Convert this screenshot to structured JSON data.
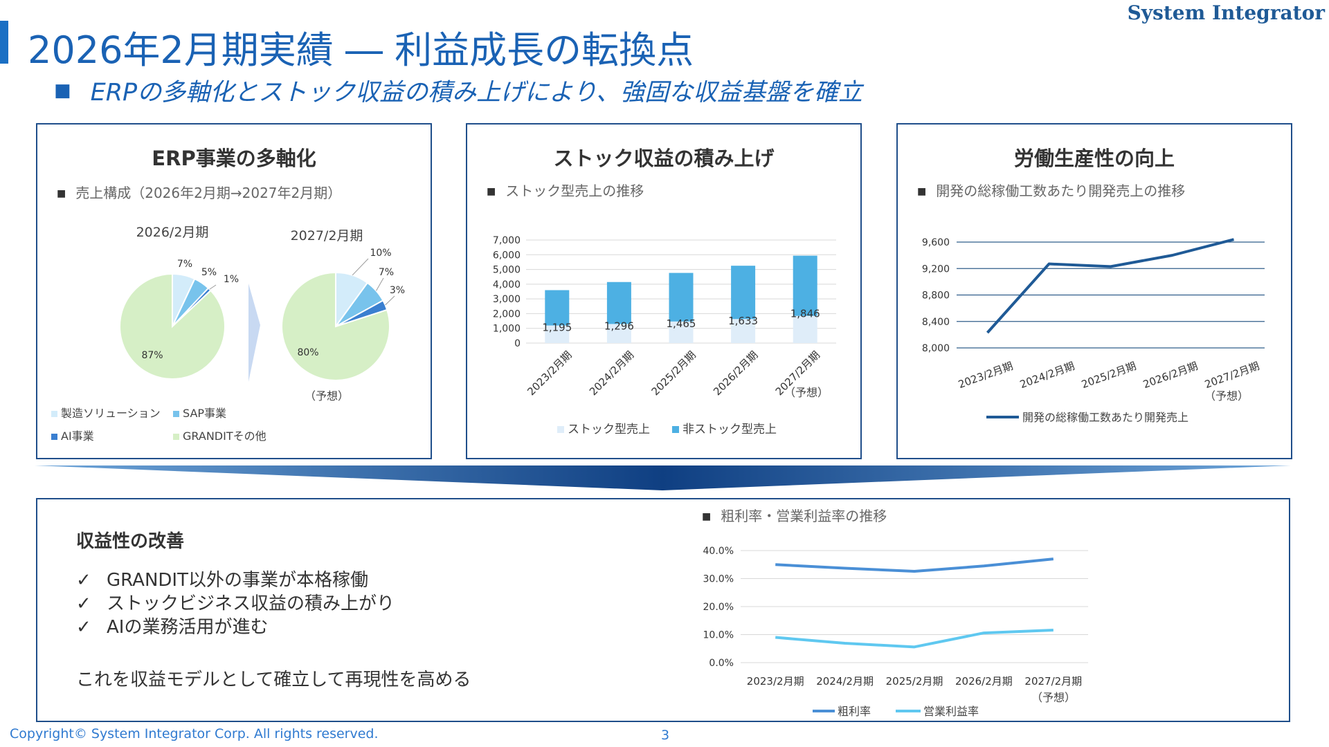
{
  "header": {
    "brand": "System Integrator",
    "title": "2026年2月期実績 ― 利益成長の転換点",
    "subtitle": "ERPの多軸化とストック収益の積み上げにより、強固な収益基盤を確立",
    "subtitle_marker": "■"
  },
  "panels": {
    "erp": {
      "title": "ERP事業の多軸化",
      "subtitle": "売上構成（2026年2月期→2027年2月期）",
      "marker": "■",
      "pie_left_label": "2026/2月期",
      "pie_right_label": "2027/2月期",
      "pie_right_note": "（予想）"
    },
    "stock": {
      "title": "ストック収益の積み上げ",
      "subtitle": "ストック型売上の推移",
      "marker": "■",
      "note": "（予想）"
    },
    "labor": {
      "title": "労働生産性の向上",
      "subtitle": "開発の総稼働工数あたり開発売上の推移",
      "marker": "■",
      "note": "（予想）"
    },
    "profit": {
      "section_title": "収益性の改善",
      "check_mark": "✓",
      "checks": [
        "GRANDIT以外の事業が本格稼働",
        "ストックビジネス収益の積み上がり",
        "AIの業務活用が進む"
      ],
      "summary": "これを収益モデルとして確立して再現性を高める",
      "chart_subtitle": "粗利率・営業利益率の推移",
      "marker": "■",
      "note": "（予想）"
    }
  },
  "footer": {
    "copyright": "Copyright© System Integrator Corp. All rights reserved.",
    "page": "3"
  },
  "chart_data": [
    {
      "type": "pie",
      "title": "2026/2月期",
      "categories": [
        "製造ソリューション",
        "SAP事業",
        "AI事業",
        "GRANDITその他"
      ],
      "values": [
        7,
        5,
        1,
        87
      ],
      "value_labels": [
        "7%",
        "5%",
        "1%",
        "87%"
      ],
      "colors": [
        "#d3ecfa",
        "#78c3ec",
        "#3a7fd0",
        "#d6efc6"
      ]
    },
    {
      "type": "pie",
      "title": "2027/2月期",
      "categories": [
        "製造ソリューション",
        "SAP事業",
        "AI事業",
        "GRANDITその他"
      ],
      "values": [
        10,
        7,
        3,
        80
      ],
      "value_labels": [
        "10%",
        "7%",
        "3%",
        "80%"
      ],
      "colors": [
        "#d3ecfa",
        "#78c3ec",
        "#3a7fd0",
        "#d6efc6"
      ]
    },
    {
      "type": "bar",
      "stacked": true,
      "categories": [
        "2023/2月期",
        "2024/2月期",
        "2025/2月期",
        "2026/2月期",
        "2027/2月期"
      ],
      "series": [
        {
          "name": "ストック型売上",
          "values": [
            1195,
            1296,
            1465,
            1633,
            1846
          ],
          "value_labels": [
            "1,195",
            "1,296",
            "1,465",
            "1,633",
            "1,846"
          ],
          "color": "#dfedf9"
        },
        {
          "name": "非ストック型売上",
          "values": [
            2400,
            2850,
            3300,
            3620,
            4090
          ],
          "color": "#4db0e3"
        }
      ],
      "ylim": [
        0,
        7000
      ],
      "yticks": [
        "0",
        "1,000",
        "2,000",
        "3,000",
        "4,000",
        "5,000",
        "6,000",
        "7,000"
      ],
      "grid": true,
      "legend": "bottom"
    },
    {
      "type": "line",
      "categories": [
        "2023/2月期",
        "2024/2月期",
        "2025/2月期",
        "2026/2月期",
        "2027/2月期"
      ],
      "series": [
        {
          "name": "開発の総稼働工数あたり開発売上",
          "values": [
            8230,
            9270,
            9230,
            9400,
            9640
          ],
          "color": "#1f5a96"
        }
      ],
      "ylim": [
        8000,
        9600
      ],
      "yticks": [
        "8,000",
        "8,400",
        "8,800",
        "9,200",
        "9,600"
      ],
      "grid": true,
      "legend": "bottom"
    },
    {
      "type": "line",
      "categories": [
        "2023/2月期",
        "2024/2月期",
        "2025/2月期",
        "2026/2月期",
        "2027/2月期"
      ],
      "series": [
        {
          "name": "粗利率",
          "values": [
            35.0,
            33.7,
            32.6,
            34.5,
            37.0
          ],
          "color": "#4a8fd6"
        },
        {
          "name": "営業利益率",
          "values": [
            9.0,
            6.9,
            5.6,
            10.6,
            11.6
          ],
          "color": "#5fc8f0"
        }
      ],
      "ylim": [
        0,
        40
      ],
      "yticks": [
        "0.0%",
        "10.0%",
        "20.0%",
        "30.0%",
        "40.0%"
      ],
      "grid": true,
      "legend": "bottom"
    }
  ]
}
